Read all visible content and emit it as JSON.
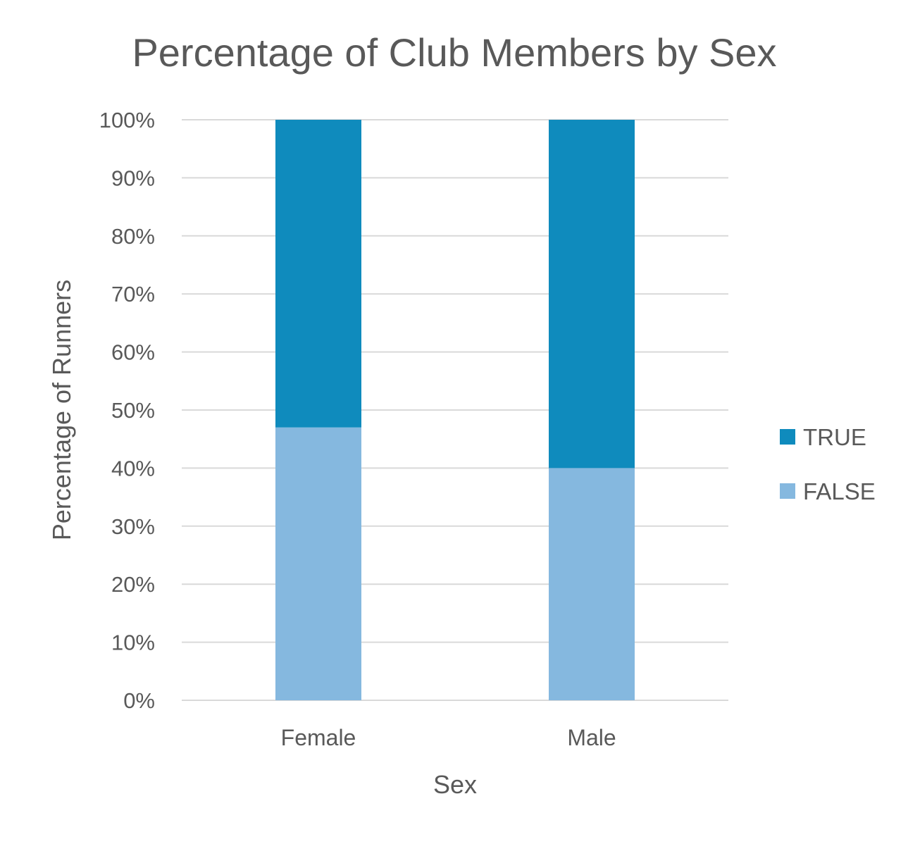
{
  "chart_data": {
    "type": "bar",
    "stacked": true,
    "title": "Percentage of Club Members by Sex",
    "xlabel": "Sex",
    "ylabel": "Percentage of Runners",
    "categories": [
      "Female",
      "Male"
    ],
    "series": [
      {
        "name": "FALSE",
        "values": [
          47,
          40
        ],
        "color": "#85b8df"
      },
      {
        "name": "TRUE",
        "values": [
          53,
          60
        ],
        "color": "#0f8bbd"
      }
    ],
    "ylim": [
      0,
      100
    ],
    "yticks": [
      "0%",
      "10%",
      "20%",
      "30%",
      "40%",
      "50%",
      "60%",
      "70%",
      "80%",
      "90%",
      "100%"
    ],
    "grid": true,
    "legend_position": "right",
    "legend_order": [
      "TRUE",
      "FALSE"
    ]
  }
}
